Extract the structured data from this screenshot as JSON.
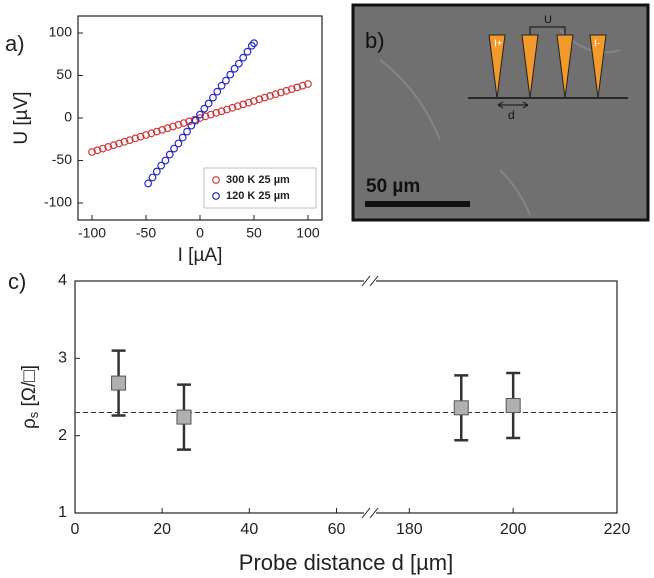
{
  "chart_data": [
    {
      "type": "scatter",
      "panel_label": "a)",
      "xlabel": "I [µA]",
      "ylabel": "U [µV]",
      "xlim": [
        -113,
        113
      ],
      "ylim": [
        -120,
        120
      ],
      "xticks": [
        -100,
        -50,
        0,
        50,
        100
      ],
      "yticks": [
        -100,
        -50,
        0,
        50,
        100
      ],
      "legend": "lower right",
      "series": [
        {
          "name": "300 K 25 µm",
          "color": "#d03a3a",
          "x": [
            -100,
            -95,
            -90,
            -85,
            -80,
            -75,
            -70,
            -65,
            -60,
            -55,
            -50,
            -45,
            -40,
            -35,
            -30,
            -25,
            -20,
            -15,
            -10,
            -5,
            0,
            5,
            10,
            15,
            20,
            25,
            30,
            35,
            40,
            45,
            50,
            55,
            60,
            65,
            70,
            75,
            80,
            85,
            90,
            95,
            100
          ],
          "values": [
            -40,
            -38,
            -36,
            -34,
            -32,
            -30,
            -28,
            -26,
            -24,
            -22,
            -20,
            -18,
            -16,
            -14,
            -12,
            -10,
            -8,
            -6,
            -4,
            -2,
            0,
            2,
            4,
            6,
            8,
            10,
            12,
            14,
            16,
            18,
            20,
            22,
            24,
            26,
            28,
            30,
            32,
            34,
            36,
            38,
            40
          ]
        },
        {
          "name": "120 K 25 µm",
          "color": "#2a2ac8",
          "x": [
            -48,
            -44,
            -40,
            -36,
            -32,
            -28,
            -24,
            -20,
            -16,
            -12,
            -8,
            -4,
            0,
            4,
            8,
            12,
            16,
            20,
            24,
            28,
            32,
            36,
            40,
            44,
            48,
            50
          ],
          "values": [
            -77,
            -70,
            -63,
            -56,
            -50,
            -43,
            -36,
            -30,
            -23,
            -16,
            -9,
            -3,
            4,
            11,
            17,
            24,
            31,
            38,
            44,
            51,
            58,
            64,
            71,
            78,
            85,
            88
          ]
        }
      ]
    },
    {
      "type": "errorbar",
      "panel_label": "c)",
      "xlabel": "Probe distance d [µm]",
      "ylabel": "ρ",
      "ylabel_sub": "s",
      "ylabel_unit": " [Ω/□]",
      "x_segments": [
        {
          "xlim": [
            0,
            67
          ],
          "xticks": [
            0,
            20,
            40,
            60
          ]
        },
        {
          "xlim": [
            173,
            220
          ],
          "xticks": [
            180,
            200,
            220
          ]
        }
      ],
      "ylim": [
        1,
        4
      ],
      "yticks": [
        1,
        2,
        3,
        4
      ],
      "x": [
        10,
        25,
        190,
        200
      ],
      "values": [
        2.68,
        2.24,
        2.36,
        2.39
      ],
      "errors": [
        0.42,
        0.42,
        0.42,
        0.42
      ],
      "color": "#b0b0b0",
      "hline": 2.3
    }
  ],
  "panel_b": {
    "label": "b)",
    "scale_bar": "50 µm",
    "probes": [
      "I+",
      "U",
      "I-"
    ],
    "distance": "d"
  }
}
